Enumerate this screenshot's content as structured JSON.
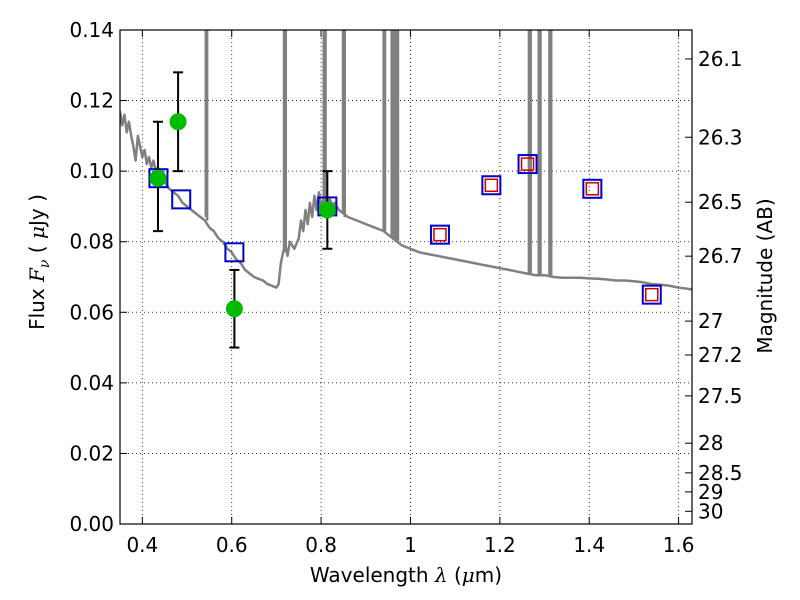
{
  "chart_data": {
    "type": "scatter",
    "xlabel": "Wavelength  λ (μm)",
    "ylabel": "Flux  Fν  ( μJy )",
    "y2label": "Magnitude (AB)",
    "xlim": [
      0.35,
      1.63
    ],
    "ylim": [
      0.0,
      0.14
    ],
    "grid": true,
    "x_ticks": [
      0.4,
      0.6,
      0.8,
      1.0,
      1.2,
      1.4,
      1.6
    ],
    "x_tick_labels": [
      "0.4",
      "0.6",
      "0.8",
      "1",
      "1.2",
      "1.4",
      "1.6"
    ],
    "y_ticks": [
      0.0,
      0.02,
      0.04,
      0.06,
      0.08,
      0.1,
      0.12,
      0.14
    ],
    "y_tick_labels": [
      "0.00",
      "0.02",
      "0.04",
      "0.06",
      "0.08",
      "0.10",
      "0.12",
      "0.14"
    ],
    "mag_ticks": [
      {
        "label": "26.1",
        "flux": 0.1318
      },
      {
        "label": "26.3",
        "flux": 0.1096
      },
      {
        "label": "26.5",
        "flux": 0.0912
      },
      {
        "label": "26.7",
        "flux": 0.0759
      },
      {
        "label": "27",
        "flux": 0.0575
      },
      {
        "label": "27.2",
        "flux": 0.0479
      },
      {
        "label": "27.5",
        "flux": 0.0363
      },
      {
        "label": "28",
        "flux": 0.0229
      },
      {
        "label": "28.5",
        "flux": 0.0145
      },
      {
        "label": "29",
        "flux": 0.0091
      },
      {
        "label": "30",
        "flux": 0.0036
      }
    ],
    "series": [
      {
        "kind": "line",
        "color": "#808080",
        "points": [
          [
            0.35,
            0.117
          ],
          [
            0.355,
            0.113
          ],
          [
            0.36,
            0.116
          ],
          [
            0.365,
            0.111
          ],
          [
            0.37,
            0.114
          ],
          [
            0.375,
            0.11
          ],
          [
            0.38,
            0.107
          ],
          [
            0.385,
            0.103
          ],
          [
            0.39,
            0.11
          ],
          [
            0.395,
            0.107
          ],
          [
            0.4,
            0.104
          ],
          [
            0.405,
            0.106
          ],
          [
            0.41,
            0.102
          ],
          [
            0.415,
            0.104
          ],
          [
            0.42,
            0.101
          ],
          [
            0.425,
            0.103
          ],
          [
            0.43,
            0.1
          ],
          [
            0.435,
            0.101
          ],
          [
            0.44,
            0.098
          ],
          [
            0.445,
            0.1
          ],
          [
            0.45,
            0.097
          ],
          [
            0.46,
            0.095
          ],
          [
            0.47,
            0.094
          ],
          [
            0.48,
            0.093
          ],
          [
            0.49,
            0.091
          ],
          [
            0.5,
            0.09
          ],
          [
            0.51,
            0.089
          ],
          [
            0.52,
            0.088
          ],
          [
            0.53,
            0.087
          ],
          [
            0.54,
            0.086
          ],
          [
            0.55,
            0.084
          ],
          [
            0.56,
            0.083
          ],
          [
            0.57,
            0.081
          ],
          [
            0.58,
            0.08
          ],
          [
            0.59,
            0.078
          ],
          [
            0.6,
            0.077
          ],
          [
            0.61,
            0.075
          ],
          [
            0.62,
            0.074
          ],
          [
            0.63,
            0.072
          ],
          [
            0.64,
            0.071
          ],
          [
            0.65,
            0.07
          ],
          [
            0.66,
            0.0695
          ],
          [
            0.67,
            0.069
          ],
          [
            0.68,
            0.068
          ],
          [
            0.69,
            0.0675
          ],
          [
            0.7,
            0.067
          ],
          [
            0.705,
            0.068
          ],
          [
            0.71,
            0.074
          ],
          [
            0.715,
            0.077
          ],
          [
            0.72,
            0.079
          ],
          [
            0.725,
            0.076
          ],
          [
            0.73,
            0.08
          ],
          [
            0.74,
            0.078
          ],
          [
            0.75,
            0.081
          ],
          [
            0.755,
            0.086
          ],
          [
            0.76,
            0.083
          ],
          [
            0.765,
            0.089
          ],
          [
            0.77,
            0.085
          ],
          [
            0.775,
            0.091
          ],
          [
            0.78,
            0.087
          ],
          [
            0.785,
            0.093
          ],
          [
            0.79,
            0.089
          ],
          [
            0.795,
            0.094
          ],
          [
            0.8,
            0.09
          ],
          [
            0.805,
            0.092
          ],
          [
            0.81,
            0.091
          ],
          [
            0.82,
            0.092
          ],
          [
            0.825,
            0.0905
          ],
          [
            0.83,
            0.091
          ],
          [
            0.84,
            0.089
          ],
          [
            0.85,
            0.088
          ],
          [
            0.86,
            0.087
          ],
          [
            0.88,
            0.086
          ],
          [
            0.9,
            0.085
          ],
          [
            0.92,
            0.084
          ],
          [
            0.94,
            0.083
          ],
          [
            0.95,
            0.082
          ],
          [
            0.96,
            0.081
          ],
          [
            0.97,
            0.08
          ],
          [
            0.98,
            0.079
          ],
          [
            1.0,
            0.078
          ],
          [
            1.02,
            0.077
          ],
          [
            1.04,
            0.0765
          ],
          [
            1.06,
            0.076
          ],
          [
            1.08,
            0.0755
          ],
          [
            1.1,
            0.075
          ],
          [
            1.12,
            0.0745
          ],
          [
            1.14,
            0.074
          ],
          [
            1.16,
            0.0735
          ],
          [
            1.18,
            0.073
          ],
          [
            1.2,
            0.0725
          ],
          [
            1.22,
            0.072
          ],
          [
            1.24,
            0.0715
          ],
          [
            1.26,
            0.071
          ],
          [
            1.28,
            0.0705
          ],
          [
            1.3,
            0.0705
          ],
          [
            1.32,
            0.07
          ],
          [
            1.34,
            0.0698
          ],
          [
            1.36,
            0.0698
          ],
          [
            1.38,
            0.0698
          ],
          [
            1.4,
            0.0696
          ],
          [
            1.42,
            0.0695
          ],
          [
            1.44,
            0.0693
          ],
          [
            1.46,
            0.069
          ],
          [
            1.48,
            0.069
          ],
          [
            1.5,
            0.0688
          ],
          [
            1.52,
            0.0685
          ],
          [
            1.54,
            0.068
          ],
          [
            1.56,
            0.0678
          ],
          [
            1.58,
            0.0675
          ],
          [
            1.6,
            0.067
          ],
          [
            1.63,
            0.0665
          ]
        ],
        "spikes": [
          {
            "x": 0.542,
            "base": 0.087
          },
          {
            "x": 0.545,
            "base": 0.086
          },
          {
            "x": 0.717,
            "base": 0.078
          },
          {
            "x": 0.721,
            "base": 0.077
          },
          {
            "x": 0.806,
            "base": 0.091
          },
          {
            "x": 0.81,
            "base": 0.09
          },
          {
            "x": 0.849,
            "base": 0.088
          },
          {
            "x": 0.853,
            "base": 0.087
          },
          {
            "x": 0.94,
            "base": 0.083
          },
          {
            "x": 0.943,
            "base": 0.083
          },
          {
            "x": 0.958,
            "base": 0.081
          },
          {
            "x": 0.962,
            "base": 0.081
          },
          {
            "x": 0.967,
            "base": 0.08
          },
          {
            "x": 0.972,
            "base": 0.08
          },
          {
            "x": 1.265,
            "base": 0.071
          },
          {
            "x": 1.269,
            "base": 0.071
          },
          {
            "x": 1.287,
            "base": 0.0705
          },
          {
            "x": 1.291,
            "base": 0.0705
          },
          {
            "x": 1.311,
            "base": 0.0703
          },
          {
            "x": 1.315,
            "base": 0.0703
          }
        ]
      },
      {
        "kind": "model-points",
        "marker": "square",
        "edge_color": "#0000cc",
        "points": [
          [
            0.436,
            0.098
          ],
          [
            0.487,
            0.092
          ],
          [
            0.606,
            0.077
          ],
          [
            0.814,
            0.09
          ],
          [
            1.066,
            0.082
          ],
          [
            1.181,
            0.096
          ],
          [
            1.262,
            0.102
          ],
          [
            1.407,
            0.095
          ],
          [
            1.54,
            0.065
          ]
        ]
      },
      {
        "kind": "upper-limit-points",
        "marker": "square",
        "edge_color": "#cc0000",
        "points": [
          [
            1.066,
            0.082
          ],
          [
            1.181,
            0.096
          ],
          [
            1.262,
            0.102
          ],
          [
            1.407,
            0.095
          ],
          [
            1.54,
            0.065
          ]
        ]
      },
      {
        "kind": "observed-points",
        "marker": "circle",
        "color": "#00bb00",
        "points": [
          {
            "x": 0.435,
            "y": 0.098,
            "err_low": 0.083,
            "err_high": 0.114
          },
          {
            "x": 0.48,
            "y": 0.114,
            "err_low": 0.1,
            "err_high": 0.128
          },
          {
            "x": 0.606,
            "y": 0.061,
            "err_low": 0.05,
            "err_high": 0.072
          },
          {
            "x": 0.814,
            "y": 0.089,
            "err_low": 0.078,
            "err_high": 0.1
          }
        ]
      }
    ]
  }
}
